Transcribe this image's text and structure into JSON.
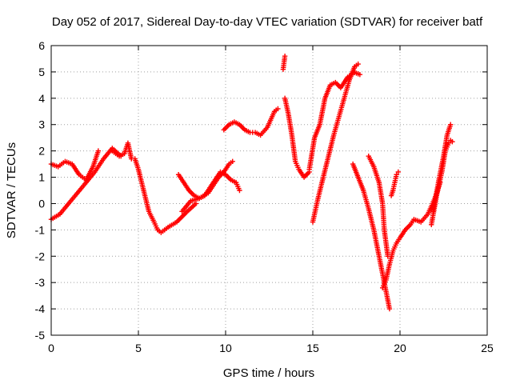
{
  "chart_data": {
    "type": "scatter",
    "title": "Day 052 of 2017, Sidereal Day-to-day VTEC variation (SDTVAR) for receiver batf",
    "xlabel": "GPS time / hours",
    "ylabel": "SDTVAR / TECUs",
    "xlim": [
      0,
      25
    ],
    "ylim": [
      -5,
      6
    ],
    "xticks": [
      "0",
      "5",
      "10",
      "15",
      "20",
      "25"
    ],
    "yticks": [
      "-5",
      "-4",
      "-3",
      "-2",
      "-1",
      "0",
      "1",
      "2",
      "3",
      "4",
      "5",
      "6"
    ],
    "grid": true,
    "marker": "plus",
    "color": "#ff0000",
    "series": [
      {
        "x": [
          0.0,
          0.5,
          1.0,
          1.5,
          2.0,
          2.5,
          3.0,
          3.5,
          4.0
        ],
        "y": [
          -0.6,
          -0.4,
          0.0,
          0.4,
          0.8,
          1.2,
          1.7,
          2.1,
          1.8
        ]
      },
      {
        "x": [
          0.0,
          0.4,
          0.8,
          1.2,
          1.6,
          2.0,
          2.4,
          2.7
        ],
        "y": [
          1.5,
          1.4,
          1.6,
          1.5,
          1.1,
          0.9,
          1.4,
          2.0
        ]
      },
      {
        "x": [
          3.5,
          3.9,
          4.2,
          4.4,
          4.6,
          4.8,
          5.0,
          5.3,
          5.6,
          5.9,
          6.1,
          6.3,
          6.7,
          7.2,
          7.8,
          8.3
        ],
        "y": [
          2.0,
          1.8,
          1.9,
          2.3,
          1.7,
          1.7,
          1.3,
          0.5,
          -0.3,
          -0.7,
          -1.0,
          -1.1,
          -0.9,
          -0.7,
          -0.3,
          0.0
        ]
      },
      {
        "x": [
          7.3,
          7.6,
          7.9,
          8.2,
          8.5,
          8.8,
          9.1,
          9.4,
          9.7,
          10.0,
          10.3,
          10.6,
          10.8
        ],
        "y": [
          1.1,
          0.8,
          0.5,
          0.3,
          0.2,
          0.3,
          0.6,
          0.9,
          1.2,
          1.1,
          0.9,
          0.8,
          0.5
        ]
      },
      {
        "x": [
          7.5,
          8.0,
          8.5,
          9.0,
          9.3,
          9.6,
          9.9,
          10.2,
          10.4
        ],
        "y": [
          -0.3,
          0.1,
          0.2,
          0.4,
          0.7,
          1.0,
          1.2,
          1.5,
          1.6
        ]
      },
      {
        "x": [
          9.9,
          10.2,
          10.5,
          10.8,
          11.1,
          11.4,
          11.7,
          12.0,
          12.4,
          12.8,
          13.0
        ],
        "y": [
          2.8,
          3.0,
          3.1,
          3.0,
          2.8,
          2.7,
          2.7,
          2.6,
          2.9,
          3.5,
          3.6
        ]
      },
      {
        "x": [
          13.3,
          13.4
        ],
        "y": [
          5.1,
          5.6
        ]
      },
      {
        "x": [
          13.4,
          13.6,
          13.8,
          14.0,
          14.2,
          14.5,
          14.8
        ],
        "y": [
          4.0,
          3.4,
          2.6,
          1.6,
          1.3,
          1.0,
          1.2
        ]
      },
      {
        "x": [
          14.8,
          15.1,
          15.4,
          15.7,
          16.0,
          16.3,
          16.6,
          17.0,
          17.4
        ],
        "y": [
          1.3,
          2.5,
          3.0,
          4.0,
          4.5,
          4.6,
          4.4,
          4.8,
          5.0
        ]
      },
      {
        "x": [
          15.0,
          15.3,
          15.6,
          15.9,
          16.2,
          16.5,
          16.8,
          17.1,
          17.4,
          17.6
        ],
        "y": [
          -0.7,
          0.2,
          1.0,
          1.8,
          2.6,
          3.3,
          4.0,
          4.7,
          5.2,
          5.3
        ]
      },
      {
        "x": [
          17.3,
          17.7
        ],
        "y": [
          5.0,
          4.9
        ]
      },
      {
        "x": [
          17.3,
          17.6,
          17.9,
          18.2,
          18.5,
          18.8,
          19.1,
          19.4
        ],
        "y": [
          1.5,
          1.0,
          0.5,
          -0.2,
          -1.0,
          -2.0,
          -3.0,
          -4.0
        ]
      },
      {
        "x": [
          18.2,
          18.5,
          18.8,
          19.0,
          19.1,
          19.3
        ],
        "y": [
          1.8,
          1.4,
          0.8,
          0.0,
          -1.0,
          -2.0
        ]
      },
      {
        "x": [
          19.0,
          19.2,
          19.4,
          19.6,
          19.8,
          20.0,
          20.3,
          20.6,
          20.8,
          21.2,
          21.6,
          22.0,
          22.3
        ],
        "y": [
          -3.2,
          -2.9,
          -2.3,
          -1.8,
          -1.5,
          -1.3,
          -1.0,
          -0.8,
          -0.6,
          -0.7,
          -0.4,
          0.2,
          0.8
        ]
      },
      {
        "x": [
          19.5,
          19.6,
          19.7,
          19.8,
          19.9
        ],
        "y": [
          0.3,
          0.5,
          0.8,
          1.1,
          1.2
        ]
      },
      {
        "x": [
          21.8,
          22.1,
          22.4,
          22.6,
          22.8,
          22.9,
          23.0
        ],
        "y": [
          -0.8,
          0.3,
          1.2,
          2.0,
          2.3,
          2.4,
          2.35
        ]
      },
      {
        "x": [
          21.9,
          22.2,
          22.5,
          22.7,
          22.9
        ],
        "y": [
          -0.3,
          0.8,
          1.8,
          2.6,
          3.0
        ]
      }
    ]
  }
}
